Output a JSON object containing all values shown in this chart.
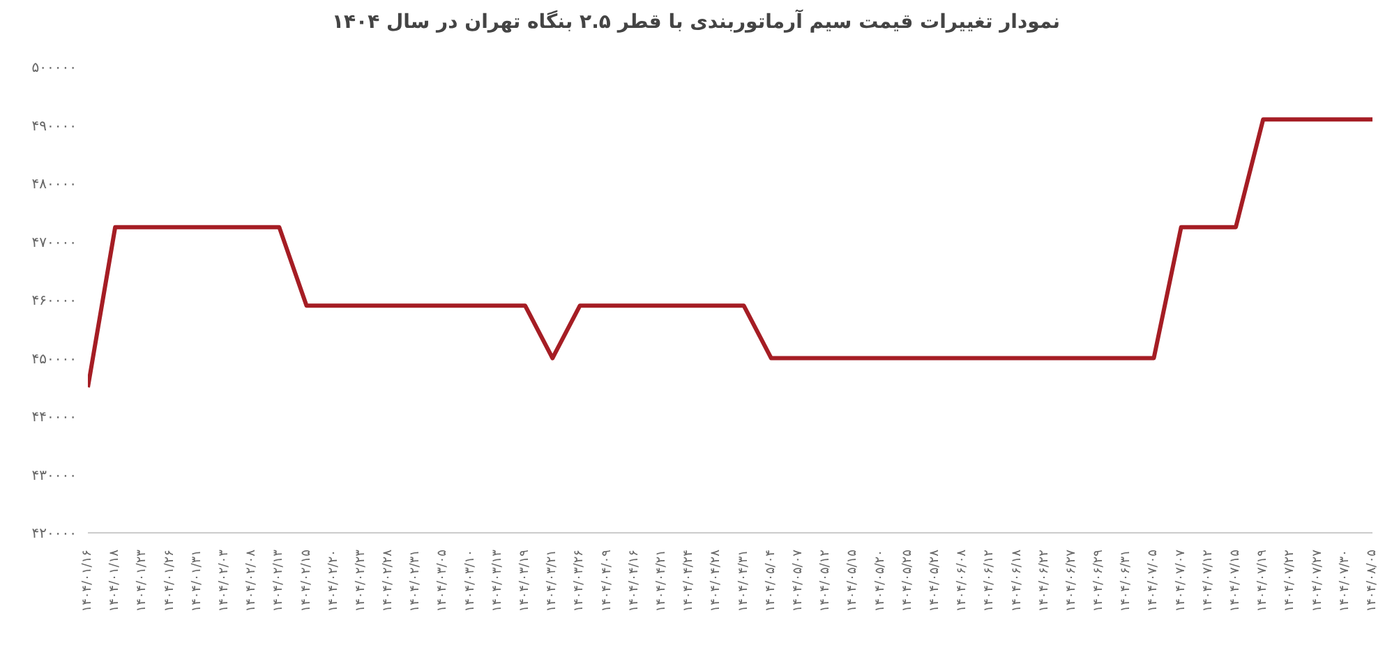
{
  "chart_data": {
    "type": "line",
    "title": "نمودار تغییرات قیمت سیم آرماتوربندی با قطر ۲.۵ بنگاه تهران در سال ۱۴۰۴",
    "categories": [
      "۱۴۰۴/۰۱/۱۶",
      "۱۴۰۴/۰۱/۱۸",
      "۱۴۰۴/۰۱/۲۳",
      "۱۴۰۴/۰۱/۲۶",
      "۱۴۰۴/۰۱/۳۱",
      "۱۴۰۴/۰۲/۰۳",
      "۱۴۰۴/۰۲/۰۸",
      "۱۴۰۴/۰۲/۱۳",
      "۱۴۰۴/۰۲/۱۵",
      "۱۴۰۴/۰۲/۲۰",
      "۱۴۰۴/۰۲/۲۳",
      "۱۴۰۴/۰۲/۲۸",
      "۱۴۰۴/۰۲/۳۱",
      "۱۴۰۴/۰۳/۰۵",
      "۱۴۰۴/۰۳/۱۰",
      "۱۴۰۴/۰۳/۱۳",
      "۱۴۰۴/۰۳/۱۹",
      "۱۴۰۴/۰۳/۲۱",
      "۱۴۰۴/۰۳/۲۶",
      "۱۴۰۴/۰۴/۰۹",
      "۱۴۰۴/۰۴/۱۶",
      "۱۴۰۴/۰۴/۲۱",
      "۱۴۰۴/۰۴/۲۴",
      "۱۴۰۴/۰۴/۲۸",
      "۱۴۰۴/۰۴/۳۱",
      "۱۴۰۴/۰۵/۰۴",
      "۱۴۰۴/۰۵/۰۷",
      "۱۴۰۴/۰۵/۱۲",
      "۱۴۰۴/۰۵/۱۵",
      "۱۴۰۴/۰۵/۲۰",
      "۱۴۰۴/۰۵/۲۵",
      "۱۴۰۴/۰۵/۲۸",
      "۱۴۰۴/۰۶/۰۸",
      "۱۴۰۴/۰۶/۱۲",
      "۱۴۰۴/۰۶/۱۸",
      "۱۴۰۴/۰۶/۲۲",
      "۱۴۰۴/۰۶/۲۷",
      "۱۴۰۴/۰۶/۲۹",
      "۱۴۰۴/۰۶/۳۱",
      "۱۴۰۴/۰۷/۰۵",
      "۱۴۰۴/۰۷/۰۷",
      "۱۴۰۴/۰۷/۱۲",
      "۱۴۰۴/۰۷/۱۵",
      "۱۴۰۴/۰۷/۱۹",
      "۱۴۰۴/۰۷/۲۲",
      "۱۴۰۴/۰۷/۲۷",
      "۱۴۰۴/۰۷/۳۰",
      "۱۴۰۴/۰۸/۰۵"
    ],
    "series": [
      {
        "color": "#a51d24",
        "values": [
          445000,
          472500,
          472500,
          472500,
          472500,
          472500,
          472500,
          472500,
          459000,
          459000,
          459000,
          459000,
          459000,
          459000,
          459000,
          459000,
          459000,
          450000,
          459000,
          459000,
          459000,
          459000,
          459000,
          459000,
          459000,
          450000,
          450000,
          450000,
          450000,
          450000,
          450000,
          450000,
          450000,
          450000,
          450000,
          450000,
          450000,
          450000,
          450000,
          450000,
          472500,
          472500,
          472500,
          491000,
          491000,
          491000,
          491000,
          491000
        ]
      }
    ],
    "ylim": [
      420000,
      500000
    ],
    "yticks": [
      {
        "value": 420000,
        "label": "۴۲۰۰۰۰"
      },
      {
        "value": 430000,
        "label": "۴۳۰۰۰۰"
      },
      {
        "value": 440000,
        "label": "۴۴۰۰۰۰"
      },
      {
        "value": 450000,
        "label": "۴۵۰۰۰۰"
      },
      {
        "value": 460000,
        "label": "۴۶۰۰۰۰"
      },
      {
        "value": 470000,
        "label": "۴۷۰۰۰۰"
      },
      {
        "value": 480000,
        "label": "۴۸۰۰۰۰"
      },
      {
        "value": 490000,
        "label": "۴۹۰۰۰۰"
      },
      {
        "value": 500000,
        "label": "۵۰۰۰۰۰"
      }
    ],
    "grid": false,
    "legend": false,
    "marker": "none",
    "line_style": "solid"
  }
}
